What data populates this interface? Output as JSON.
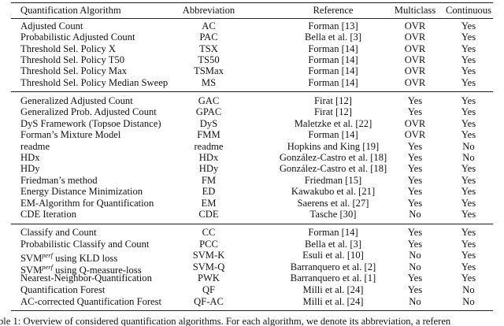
{
  "table": {
    "header": [
      "Quantification Algorithm",
      "Abbreviation",
      "Reference",
      "Multiclass",
      "Continuous"
    ],
    "groups": [
      [
        [
          "Adjusted Count",
          "AC",
          "Forman [13]",
          "OVR",
          "Yes"
        ],
        [
          "Probabilistic Adjusted Count",
          "PAC",
          "Bella et al. [3]",
          "OVR",
          "Yes"
        ],
        [
          "Threshold Sel. Policy X",
          "TSX",
          "Forman [14]",
          "OVR",
          "Yes"
        ],
        [
          "Threshold Sel. Policy T50",
          "TS50",
          "Forman [14]",
          "OVR",
          "Yes"
        ],
        [
          "Threshold Sel. Policy Max",
          "TSMax",
          "Forman [14]",
          "OVR",
          "Yes"
        ],
        [
          "Threshold Sel. Policy Median Sweep",
          "MS",
          "Forman [14]",
          "OVR",
          "Yes"
        ]
      ],
      [
        [
          "Generalized Adjusted Count",
          "GAC",
          "Firat [12]",
          "Yes",
          "Yes"
        ],
        [
          "Generalized Prob. Adjusted Count",
          "GPAC",
          "Firat [12]",
          "Yes",
          "Yes"
        ],
        [
          "DyS Framework (Topsoe Distance)",
          "DyS",
          "Maletzke et al. [22]",
          "OVR",
          "Yes"
        ],
        [
          "Forman’s Mixture Model",
          "FMM",
          "Forman [14]",
          "OVR",
          "Yes"
        ],
        [
          "readme",
          "readme",
          "Hopkins and King [19]",
          "Yes",
          "No"
        ],
        [
          "HDx",
          "HDx",
          "González-Castro et al. [18]",
          "Yes",
          "No"
        ],
        [
          "HDy",
          "HDy",
          "González-Castro et al. [18]",
          "Yes",
          "Yes"
        ],
        [
          "Friedman’s method",
          "FM",
          "Friedman [15]",
          "Yes",
          "Yes"
        ],
        [
          "Energy Distance Minimization",
          "ED",
          "Kawakubo et al. [21]",
          "Yes",
          "Yes"
        ],
        [
          "EM-Algorithm for Quantification",
          "EM",
          "Saerens et al. [27]",
          "Yes",
          "Yes"
        ],
        [
          "CDE Iteration",
          "CDE",
          "Tasche [30]",
          "No",
          "Yes"
        ]
      ],
      [
        [
          "Classify and Count",
          "CC",
          "Forman [14]",
          "Yes",
          "Yes"
        ],
        [
          "Probabilistic Classify and Count",
          "PCC",
          "Bella et al. [3]",
          "Yes",
          "Yes"
        ],
        [
          {
            "text": "SVM",
            "sup": "perf",
            "after": " using KLD loss"
          },
          "SVM-K",
          "Esuli et al. [10]",
          "No",
          "Yes"
        ],
        [
          {
            "text": "SVM",
            "sup": "perf",
            "after": " using Q-measure-loss"
          },
          "SVM-Q",
          "Barranquero et al. [2]",
          "No",
          "Yes"
        ],
        [
          "Nearest-Neighbor-Quantification",
          "PWK",
          "Barranquero et al. [1]",
          "Yes",
          "Yes"
        ],
        [
          "Quantification Forest",
          "QF",
          "Milli et al. [24]",
          "Yes",
          "No"
        ],
        [
          "AC-corrected Quantification Forest",
          "QF-AC",
          "Milli et al. [24]",
          "No",
          "No"
        ]
      ]
    ],
    "caption": "ble 1: Overview of considered quantification algorithms. For each algorithm, we denote its abbreviation, a referen"
  }
}
